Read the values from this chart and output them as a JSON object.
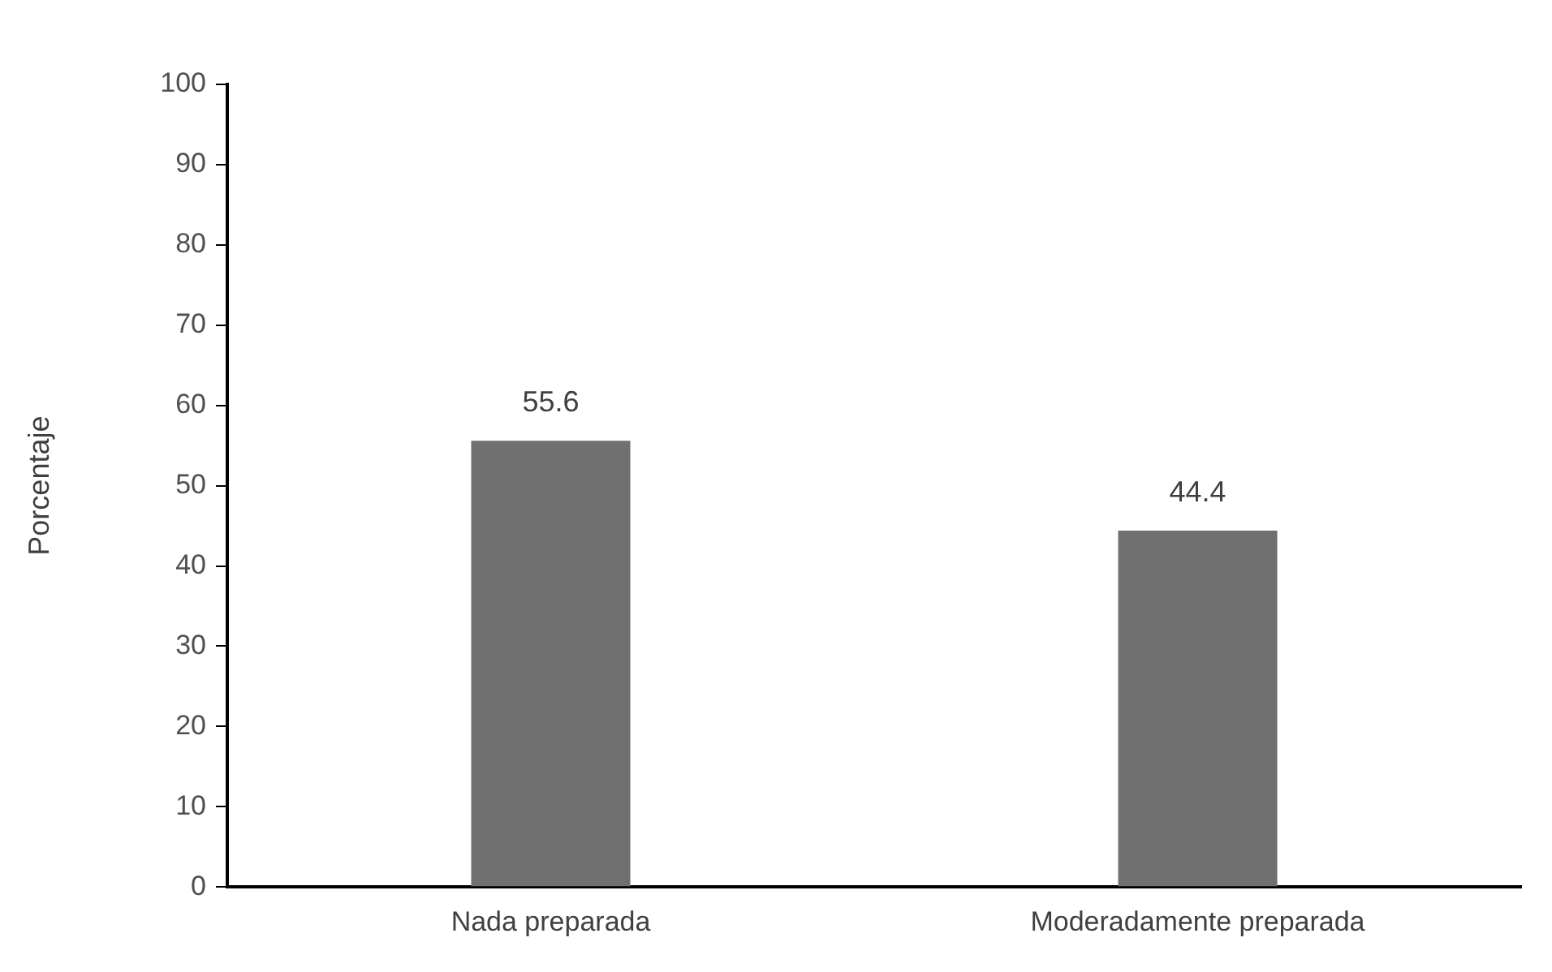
{
  "chart_data": {
    "type": "bar",
    "ylabel": "Porcentaje",
    "categories": [
      "Nada preparada",
      "Moderadamente preparada"
    ],
    "values": [
      55.6,
      44.4
    ],
    "color": "#707070",
    "ylim": [
      0,
      100
    ],
    "yticks": [
      0,
      10,
      20,
      30,
      40,
      50,
      60,
      70,
      80,
      90,
      100
    ],
    "grid": false,
    "data_labels": true,
    "legend": false
  }
}
